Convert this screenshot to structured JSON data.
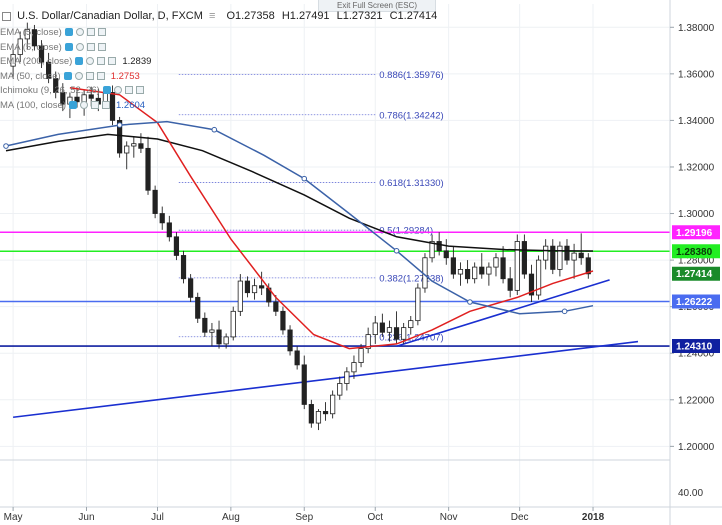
{
  "header": {
    "symbol_title": "U.S. Dollar/Canadian Dollar, D, FXCM",
    "ohlc": {
      "open": "O1.27358",
      "high": "H1.27491",
      "low": "L1.27321",
      "close": "C1.27414"
    },
    "exit_fullscreen": "Exit Full Screen (ESC)"
  },
  "legend": [
    {
      "label": "EMA (5, close)",
      "value": "",
      "color": "#9aa5b1"
    },
    {
      "label": "EMA (5, close)",
      "value": "",
      "color": "#9aa5b1"
    },
    {
      "label": "EMA (200, close)",
      "value": "1.2839",
      "color": "#222222"
    },
    {
      "label": "MA (50, close)",
      "value": "1.2753",
      "color": "#e03030"
    },
    {
      "label": "Ichimoku (9, 26, 52, 26)",
      "value": "",
      "color": "#9aa5b1"
    },
    {
      "label": "MA (100, close)",
      "value": "1.2604",
      "color": "#2a60c0"
    }
  ],
  "chart_data": {
    "type": "candlestick",
    "x_axis": {
      "type": "date",
      "ticks": [
        "May",
        "Jun",
        "Jul",
        "Aug",
        "Sep",
        "Oct",
        "Nov",
        "Dec",
        "2018"
      ],
      "range": [
        "2017-04-28",
        "2018-01-20"
      ]
    },
    "y_axis": {
      "ylim": [
        1.195,
        1.39
      ],
      "ticks": [
        "1.38000",
        "1.36000",
        "1.34000",
        "1.32000",
        "1.30000",
        "1.28000",
        "1.26000",
        "1.24000",
        "1.22000",
        "1.20000"
      ],
      "tick_values": [
        1.38,
        1.36,
        1.34,
        1.32,
        1.3,
        1.28,
        1.26,
        1.24,
        1.22,
        1.2
      ]
    },
    "sub_axis": {
      "ticks": [
        "40.00"
      ]
    },
    "last_price": {
      "label": "1.27414",
      "value": 1.27414,
      "color": "#1a8a2a"
    },
    "horizontal_levels": [
      {
        "value": 1.29196,
        "label": "1.29196",
        "color": "#ff22ff"
      },
      {
        "value": 1.2838,
        "label": "1.28380",
        "color": "#22ee22"
      },
      {
        "value": 1.26222,
        "label": "1.26222",
        "color": "#4a6cf0"
      },
      {
        "value": 1.2431,
        "label": "1.24310",
        "color": "#1020a0"
      }
    ],
    "fibonacci": [
      {
        "label": "0.886(1.35976)",
        "value": 1.35976
      },
      {
        "label": "0.786(1.34242)",
        "value": 1.34242
      },
      {
        "label": "0.618(1.31330)",
        "value": 1.3133
      },
      {
        "label": "0.5(1.29284)",
        "value": 1.29284
      },
      {
        "label": "0.382(1.27238)",
        "value": 1.27238
      },
      {
        "label": "0.236(1.24707)",
        "value": 1.24707
      }
    ],
    "trendlines": [
      {
        "from": [
          "2017-05-01",
          1.2125
        ],
        "to": [
          "2018-01-20",
          1.245
        ],
        "color": "#1a2fd0"
      },
      {
        "from": [
          "2017-10-10",
          1.243
        ],
        "to": [
          "2018-01-08",
          1.2715
        ],
        "color": "#1a2fd0"
      }
    ],
    "candles": [
      [
        "2017-05-01",
        1.3633,
        1.372,
        1.358,
        1.3683
      ],
      [
        "2017-05-04",
        1.3683,
        1.3782,
        1.365,
        1.375
      ],
      [
        "2017-05-07",
        1.375,
        1.382,
        1.3705,
        1.379
      ],
      [
        "2017-05-10",
        1.379,
        1.381,
        1.37,
        1.372
      ],
      [
        "2017-05-13",
        1.372,
        1.3745,
        1.3625,
        1.365
      ],
      [
        "2017-05-16",
        1.365,
        1.369,
        1.356,
        1.358
      ],
      [
        "2017-05-19",
        1.358,
        1.361,
        1.3495,
        1.352
      ],
      [
        "2017-05-22",
        1.352,
        1.356,
        1.344,
        1.347
      ],
      [
        "2017-05-25",
        1.347,
        1.352,
        1.341,
        1.35
      ],
      [
        "2017-05-28",
        1.35,
        1.354,
        1.3455,
        1.348
      ],
      [
        "2017-05-31",
        1.348,
        1.353,
        1.342,
        1.351
      ],
      [
        "2017-06-03",
        1.351,
        1.3545,
        1.346,
        1.3495
      ],
      [
        "2017-06-06",
        1.3495,
        1.3535,
        1.344,
        1.347
      ],
      [
        "2017-06-09",
        1.347,
        1.3545,
        1.345,
        1.352
      ],
      [
        "2017-06-12",
        1.352,
        1.355,
        1.338,
        1.34
      ],
      [
        "2017-06-15",
        1.34,
        1.3415,
        1.324,
        1.326
      ],
      [
        "2017-06-18",
        1.326,
        1.331,
        1.319,
        1.329
      ],
      [
        "2017-06-21",
        1.329,
        1.333,
        1.324,
        1.33
      ],
      [
        "2017-06-24",
        1.33,
        1.3345,
        1.326,
        1.328
      ],
      [
        "2017-06-27",
        1.328,
        1.333,
        1.308,
        1.31
      ],
      [
        "2017-06-30",
        1.31,
        1.312,
        1.298,
        1.3
      ],
      [
        "2017-07-03",
        1.3,
        1.303,
        1.293,
        1.296
      ],
      [
        "2017-07-06",
        1.296,
        1.299,
        1.288,
        1.29
      ],
      [
        "2017-07-09",
        1.29,
        1.292,
        1.28,
        1.282
      ],
      [
        "2017-07-12",
        1.282,
        1.284,
        1.27,
        1.272
      ],
      [
        "2017-07-15",
        1.272,
        1.274,
        1.262,
        1.264
      ],
      [
        "2017-07-18",
        1.264,
        1.266,
        1.253,
        1.255
      ],
      [
        "2017-07-21",
        1.255,
        1.2575,
        1.247,
        1.249
      ],
      [
        "2017-07-24",
        1.249,
        1.253,
        1.243,
        1.25
      ],
      [
        "2017-07-27",
        1.25,
        1.254,
        1.242,
        1.244
      ],
      [
        "2017-07-30",
        1.244,
        1.2485,
        1.242,
        1.247
      ],
      [
        "2017-08-02",
        1.247,
        1.26,
        1.2455,
        1.258
      ],
      [
        "2017-08-05",
        1.258,
        1.274,
        1.256,
        1.271
      ],
      [
        "2017-08-08",
        1.271,
        1.273,
        1.264,
        1.266
      ],
      [
        "2017-08-11",
        1.266,
        1.272,
        1.263,
        1.269
      ],
      [
        "2017-08-14",
        1.269,
        1.275,
        1.265,
        1.268
      ],
      [
        "2017-08-17",
        1.268,
        1.27,
        1.26,
        1.262
      ],
      [
        "2017-08-20",
        1.262,
        1.265,
        1.256,
        1.258
      ],
      [
        "2017-08-23",
        1.258,
        1.26,
        1.248,
        1.25
      ],
      [
        "2017-08-26",
        1.25,
        1.252,
        1.239,
        1.241
      ],
      [
        "2017-08-29",
        1.241,
        1.243,
        1.233,
        1.235
      ],
      [
        "2017-09-01",
        1.235,
        1.239,
        1.216,
        1.218
      ],
      [
        "2017-09-04",
        1.218,
        1.22,
        1.208,
        1.21
      ],
      [
        "2017-09-07",
        1.21,
        1.216,
        1.207,
        1.215
      ],
      [
        "2017-09-10",
        1.215,
        1.219,
        1.211,
        1.214
      ],
      [
        "2017-09-13",
        1.214,
        1.224,
        1.212,
        1.222
      ],
      [
        "2017-09-16",
        1.222,
        1.23,
        1.22,
        1.227
      ],
      [
        "2017-09-19",
        1.227,
        1.234,
        1.224,
        1.232
      ],
      [
        "2017-09-22",
        1.232,
        1.239,
        1.229,
        1.236
      ],
      [
        "2017-09-25",
        1.236,
        1.244,
        1.234,
        1.242
      ],
      [
        "2017-09-28",
        1.242,
        1.251,
        1.24,
        1.248
      ],
      [
        "2017-10-01",
        1.248,
        1.256,
        1.244,
        1.253
      ],
      [
        "2017-10-04",
        1.253,
        1.257,
        1.247,
        1.249
      ],
      [
        "2017-10-07",
        1.249,
        1.254,
        1.245,
        1.251
      ],
      [
        "2017-10-10",
        1.251,
        1.258,
        1.244,
        1.246
      ],
      [
        "2017-10-13",
        1.246,
        1.253,
        1.244,
        1.251
      ],
      [
        "2017-10-16",
        1.251,
        1.256,
        1.248,
        1.254
      ],
      [
        "2017-10-19",
        1.254,
        1.27,
        1.252,
        1.268
      ],
      [
        "2017-10-22",
        1.268,
        1.283,
        1.266,
        1.281
      ],
      [
        "2017-10-25",
        1.281,
        1.291,
        1.279,
        1.288
      ],
      [
        "2017-10-28",
        1.288,
        1.292,
        1.282,
        1.284
      ],
      [
        "2017-10-31",
        1.284,
        1.289,
        1.278,
        1.281
      ],
      [
        "2017-11-03",
        1.281,
        1.286,
        1.272,
        1.274
      ],
      [
        "2017-11-06",
        1.274,
        1.279,
        1.269,
        1.276
      ],
      [
        "2017-11-09",
        1.276,
        1.28,
        1.27,
        1.272
      ],
      [
        "2017-11-12",
        1.272,
        1.279,
        1.27,
        1.277
      ],
      [
        "2017-11-15",
        1.277,
        1.283,
        1.272,
        1.274
      ],
      [
        "2017-11-18",
        1.274,
        1.279,
        1.269,
        1.277
      ],
      [
        "2017-11-21",
        1.277,
        1.283,
        1.273,
        1.281
      ],
      [
        "2017-11-24",
        1.281,
        1.286,
        1.27,
        1.272
      ],
      [
        "2017-11-27",
        1.272,
        1.277,
        1.264,
        1.267
      ],
      [
        "2017-11-30",
        1.267,
        1.291,
        1.265,
        1.288
      ],
      [
        "2017-12-03",
        1.288,
        1.291,
        1.272,
        1.274
      ],
      [
        "2017-12-06",
        1.274,
        1.278,
        1.262,
        1.265
      ],
      [
        "2017-12-09",
        1.265,
        1.282,
        1.263,
        1.28
      ],
      [
        "2017-12-12",
        1.28,
        1.289,
        1.276,
        1.286
      ],
      [
        "2017-12-15",
        1.286,
        1.289,
        1.274,
        1.276
      ],
      [
        "2017-12-18",
        1.276,
        1.288,
        1.273,
        1.286
      ],
      [
        "2017-12-21",
        1.286,
        1.289,
        1.278,
        1.28
      ],
      [
        "2017-12-24",
        1.28,
        1.287,
        1.272,
        1.283
      ],
      [
        "2017-12-27",
        1.283,
        1.2915,
        1.278,
        1.281
      ],
      [
        "2017-12-30",
        1.281,
        1.283,
        1.272,
        1.2741
      ]
    ],
    "ma_series": [
      {
        "name": "EMA (200, close)",
        "color": "#111111",
        "points": [
          [
            "2017-04-28",
            1.327
          ],
          [
            "2017-05-20",
            1.331
          ],
          [
            "2017-06-10",
            1.334
          ],
          [
            "2017-07-01",
            1.332
          ],
          [
            "2017-07-20",
            1.327
          ],
          [
            "2017-08-10",
            1.318
          ],
          [
            "2017-09-01",
            1.308
          ],
          [
            "2017-09-20",
            1.298
          ],
          [
            "2017-10-10",
            1.29
          ],
          [
            "2017-11-01",
            1.286
          ],
          [
            "2017-11-25",
            1.2845
          ],
          [
            "2017-12-15",
            1.284
          ],
          [
            "2018-01-01",
            1.2839
          ]
        ]
      },
      {
        "name": "MA (50, close)",
        "color": "#e02020",
        "points": [
          [
            "2017-05-25",
            1.354
          ],
          [
            "2017-06-15",
            1.351
          ],
          [
            "2017-07-01",
            1.339
          ],
          [
            "2017-07-15",
            1.316
          ],
          [
            "2017-08-01",
            1.289
          ],
          [
            "2017-08-20",
            1.264
          ],
          [
            "2017-09-05",
            1.248
          ],
          [
            "2017-09-20",
            1.242
          ],
          [
            "2017-10-10",
            1.244
          ],
          [
            "2017-10-25",
            1.25
          ],
          [
            "2017-11-10",
            1.258
          ],
          [
            "2017-11-30",
            1.264
          ],
          [
            "2017-12-15",
            1.27
          ],
          [
            "2018-01-01",
            1.2753
          ]
        ]
      },
      {
        "name": "MA (100, close)",
        "color": "#3b62a8",
        "points": [
          [
            "2017-04-28",
            1.329
          ],
          [
            "2017-05-20",
            1.334
          ],
          [
            "2017-06-15",
            1.338
          ],
          [
            "2017-07-05",
            1.3395
          ],
          [
            "2017-07-25",
            1.336
          ],
          [
            "2017-08-15",
            1.325
          ],
          [
            "2017-09-01",
            1.315
          ],
          [
            "2017-09-20",
            1.3
          ],
          [
            "2017-10-10",
            1.284
          ],
          [
            "2017-10-25",
            1.271
          ],
          [
            "2017-11-10",
            1.262
          ],
          [
            "2017-12-01",
            1.257
          ],
          [
            "2017-12-20",
            1.258
          ],
          [
            "2018-01-01",
            1.2604
          ]
        ]
      }
    ]
  }
}
